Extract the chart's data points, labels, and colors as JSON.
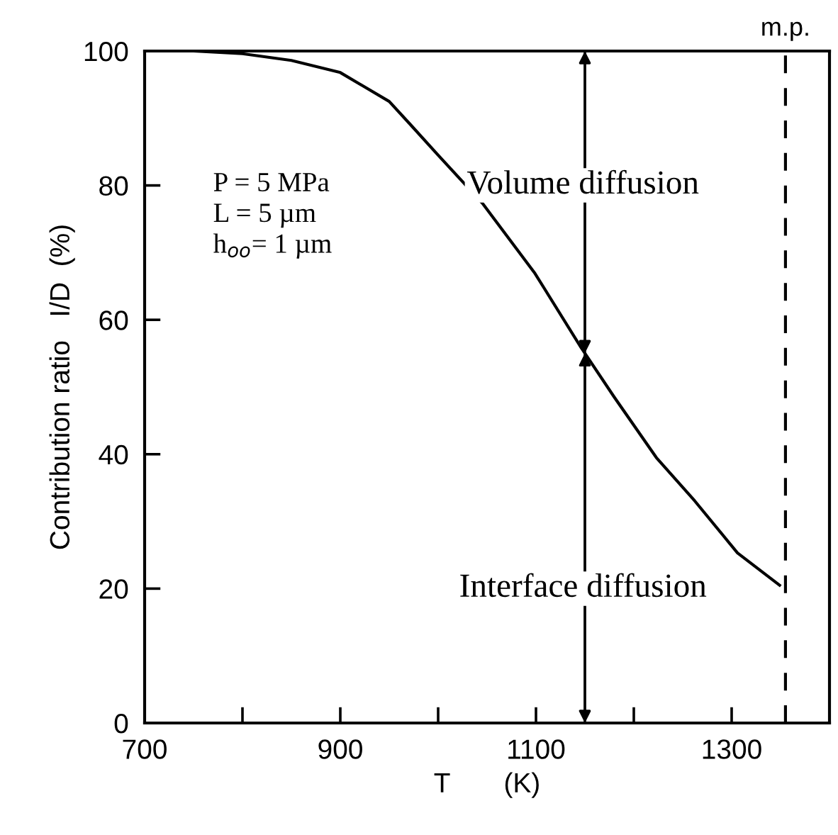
{
  "chart_data": {
    "type": "line",
    "xlabel": "T       (K)",
    "ylabel": "Contribution ratio   I/D  (%)",
    "x": [
      700,
      750,
      800,
      850,
      900,
      950,
      972,
      1000,
      1045,
      1099,
      1146,
      1180,
      1223,
      1262,
      1306,
      1349
    ],
    "series": [
      {
        "color": "#000000",
        "values": [
          100,
          100,
          99.6,
          98.6,
          96.8,
          92.5,
          89,
          84.5,
          77.4,
          66.9,
          55.9,
          48.5,
          39.5,
          33.1,
          25.3,
          20.5
        ]
      }
    ],
    "xlim": [
      700,
      1400
    ],
    "ylim": [
      0,
      100
    ],
    "xticks": [
      700,
      {
        "value": 800,
        "label": null
      },
      900,
      {
        "value": 1000,
        "label": null
      },
      1100,
      {
        "value": 1200,
        "label": null
      },
      1300
    ],
    "yticks": [
      0,
      20,
      40,
      60,
      80,
      100
    ],
    "ref_lines": [
      {
        "axis": "x",
        "value": 1355,
        "label": "m.p.",
        "line_style": "dashed",
        "color": "#000000"
      },
      {
        "axis": "x",
        "value": 1150,
        "line_style": "solid",
        "color": "#000000"
      }
    ],
    "annotations": [
      "Volume diffusion",
      "Interface diffusion",
      "P = 5 MPa\nL = 5 µm\nh$_{oo}$= 1 µm"
    ],
    "grid": false,
    "marker": "none",
    "line_style": "solid"
  }
}
